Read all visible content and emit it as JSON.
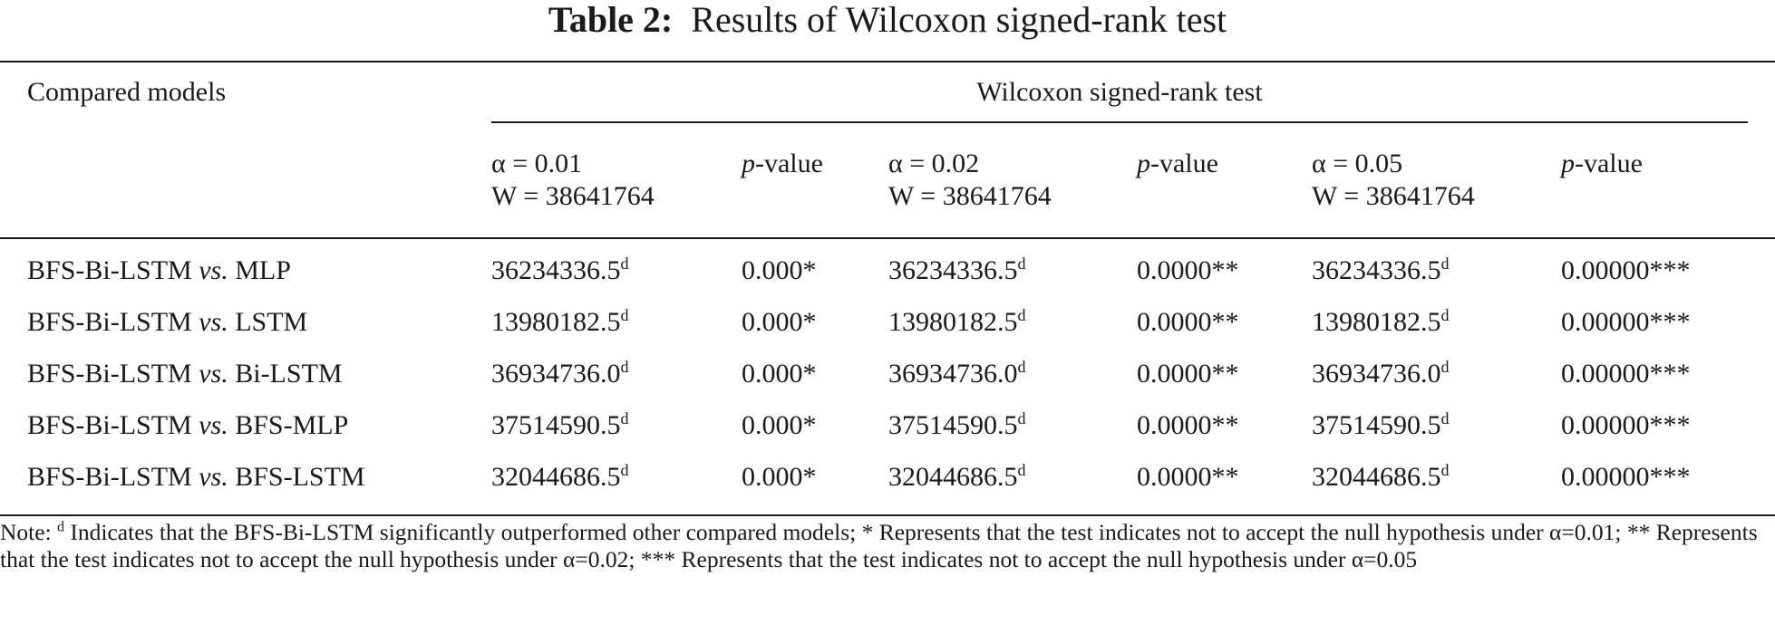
{
  "table": {
    "title_label": "Table 2:",
    "title_text": "Results of Wilcoxon signed-rank test",
    "header": {
      "compared_models": "Compared models",
      "group": "Wilcoxon signed-rank test",
      "alpha_cols": [
        {
          "alpha": "α = 0.01",
          "w": "W = 38641764",
          "p": "p",
          "p_suffix": "-value"
        },
        {
          "alpha": "α = 0.02",
          "w": "W = 38641764",
          "p": "p",
          "p_suffix": "-value"
        },
        {
          "alpha": "α = 0.05",
          "w": "W = 38641764",
          "p": "p",
          "p_suffix": "-value"
        }
      ]
    },
    "rows": [
      {
        "model_a": "BFS-Bi-LSTM",
        "vs": "vs.",
        "model_b": "MLP",
        "w1": "36234336.5",
        "p1": "0.000*",
        "w2": "36234336.5",
        "p2": "0.0000**",
        "w3": "36234336.5",
        "p3": "0.00000***"
      },
      {
        "model_a": "BFS-Bi-LSTM",
        "vs": "vs.",
        "model_b": "LSTM",
        "w1": "13980182.5",
        "p1": "0.000*",
        "w2": "13980182.5",
        "p2": "0.0000**",
        "w3": "13980182.5",
        "p3": "0.00000***"
      },
      {
        "model_a": "BFS-Bi-LSTM",
        "vs": "vs.",
        "model_b": "Bi-LSTM",
        "w1": "36934736.0",
        "p1": "0.000*",
        "w2": "36934736.0",
        "p2": "0.0000**",
        "w3": "36934736.0",
        "p3": "0.00000***"
      },
      {
        "model_a": "BFS-Bi-LSTM",
        "vs": "vs.",
        "model_b": "BFS-MLP",
        "w1": "37514590.5",
        "p1": "0.000*",
        "w2": "37514590.5",
        "p2": "0.0000**",
        "w3": "37514590.5",
        "p3": "0.00000***"
      },
      {
        "model_a": "BFS-Bi-LSTM",
        "vs": "vs.",
        "model_b": "BFS-LSTM",
        "w1": "32044686.5",
        "p1": "0.000*",
        "w2": "32044686.5",
        "p2": "0.0000**",
        "w3": "32044686.5",
        "p3": "0.00000***"
      }
    ],
    "superscript": "d",
    "note": {
      "prefix": "Note: ",
      "sup": "d",
      "text": " Indicates that the BFS-Bi-LSTM significantly outperformed other compared models; * Represents that the test indicates not to accept the null hypothesis under α=0.01; ** Represents that the test indicates not to accept the null hypothesis under α=0.02; *** Represents that the test indicates not to accept the null hypothesis under α=0.05"
    }
  }
}
